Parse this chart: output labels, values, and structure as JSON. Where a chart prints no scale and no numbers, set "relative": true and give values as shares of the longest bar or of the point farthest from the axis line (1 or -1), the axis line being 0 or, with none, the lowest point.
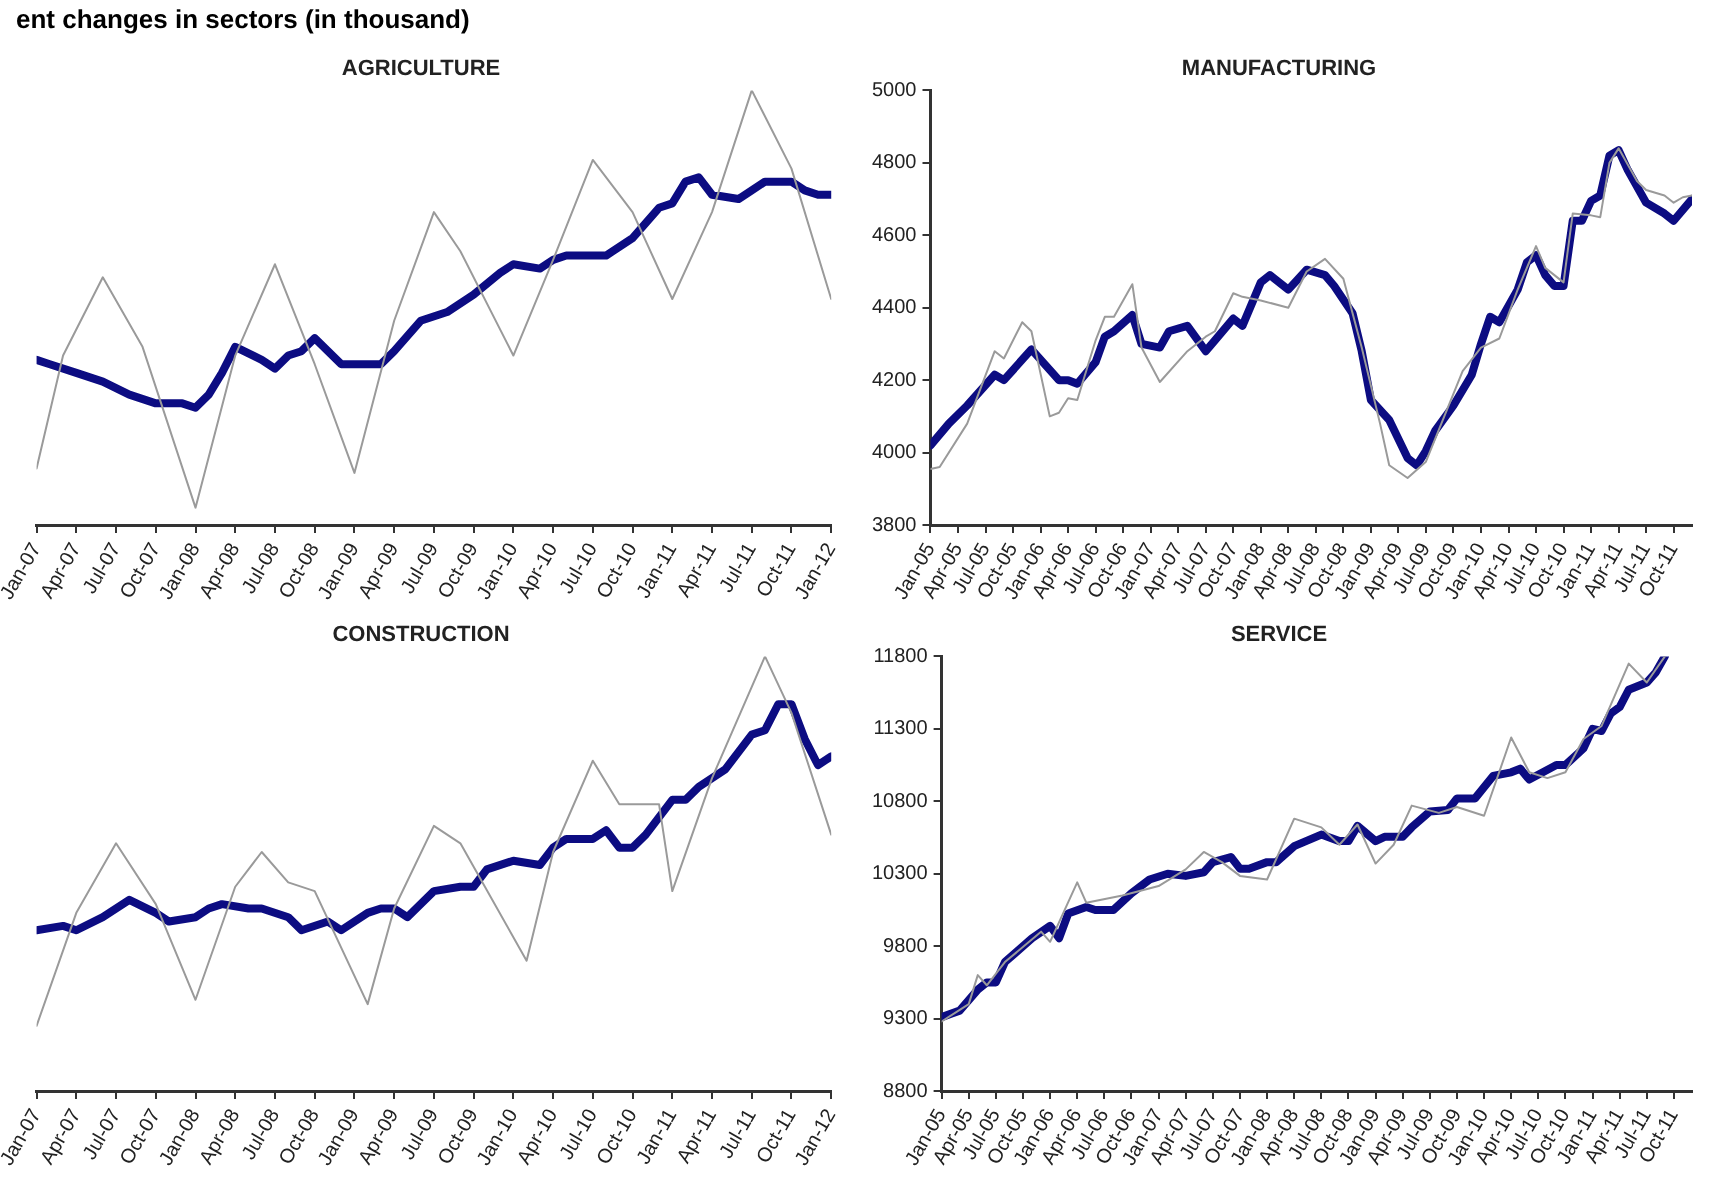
{
  "chart_data": [
    {
      "type": "line",
      "title": "AGRICULTURE",
      "annotations": [
        "ent changes in sectors (in thousand)"
      ],
      "relative": true,
      "marker": "none",
      "line_style": "solid",
      "xlim": [
        "2007-01",
        "2012-01"
      ],
      "xticks": [
        {
          "value": "2007-01",
          "label": "Jan-07"
        },
        {
          "value": "2007-04",
          "label": "Apr-07"
        },
        {
          "value": "2007-07",
          "label": "Jul-07"
        },
        {
          "value": "2007-10",
          "label": "Oct-07"
        },
        {
          "value": "2008-01",
          "label": "Jan-08"
        },
        {
          "value": "2008-04",
          "label": "Apr-08"
        },
        {
          "value": "2008-07",
          "label": "Jul-08"
        },
        {
          "value": "2008-10",
          "label": "Oct-08"
        },
        {
          "value": "2009-01",
          "label": "Jan-09"
        },
        {
          "value": "2009-04",
          "label": "Apr-09"
        },
        {
          "value": "2009-07",
          "label": "Jul-09"
        },
        {
          "value": "2009-10",
          "label": "Oct-09"
        },
        {
          "value": "2010-01",
          "label": "Jan-10"
        },
        {
          "value": "2010-04",
          "label": "Apr-10"
        },
        {
          "value": "2010-07",
          "label": "Jul-10"
        },
        {
          "value": "2010-10",
          "label": "Oct-10"
        },
        {
          "value": "2011-01",
          "label": "Jan-11"
        },
        {
          "value": "2011-04",
          "label": "Apr-11"
        },
        {
          "value": "2011-07",
          "label": "Jul-11"
        },
        {
          "value": "2011-10",
          "label": "Oct-11"
        },
        {
          "value": "2012-01",
          "label": "Jan-12"
        }
      ],
      "series": [
        {
          "color": "#9a9a9a",
          "x": [
            "2007-01",
            "2007-03",
            "2007-06",
            "2007-09",
            "2008-01",
            "2008-04",
            "2008-07",
            "2008-10",
            "2009-01",
            "2009-04",
            "2009-07",
            "2009-09",
            "2010-01",
            "2010-04",
            "2010-07",
            "2010-10",
            "2011-01",
            "2011-04",
            "2011-07",
            "2011-10",
            "2012-01"
          ],
          "values": [
            0.13,
            0.39,
            0.57,
            0.41,
            0.04,
            0.39,
            0.6,
            0.37,
            0.12,
            0.47,
            0.72,
            0.63,
            0.39,
            0.61,
            0.84,
            0.72,
            0.52,
            0.72,
            1,
            0.82,
            0.52
          ]
        },
        {
          "color": "#0c0c82",
          "x": [
            "2007-01",
            "2007-02",
            "2007-04",
            "2007-06",
            "2007-08",
            "2007-10",
            "2007-12",
            "2008-01",
            "2008-02",
            "2008-03",
            "2008-04",
            "2008-06",
            "2008-07",
            "2008-08",
            "2008-09",
            "2008-10",
            "2008-11",
            "2008-12",
            "2009-02",
            "2009-03",
            "2009-04",
            "2009-06",
            "2009-08",
            "2009-10",
            "2009-12",
            "2010-01",
            "2010-03",
            "2010-04",
            "2010-05",
            "2010-07",
            "2010-08",
            "2010-10",
            "2010-12",
            "2011-01",
            "2011-02",
            "2011-03",
            "2011-04",
            "2011-06",
            "2011-07",
            "2011-08",
            "2011-09",
            "2011-10",
            "2011-11",
            "2011-12",
            "2012-01"
          ],
          "values": [
            0.38,
            0.37,
            0.35,
            0.33,
            0.3,
            0.28,
            0.28,
            0.27,
            0.3,
            0.35,
            0.41,
            0.38,
            0.36,
            0.39,
            0.4,
            0.43,
            0.4,
            0.37,
            0.37,
            0.37,
            0.4,
            0.47,
            0.49,
            0.53,
            0.58,
            0.6,
            0.59,
            0.61,
            0.62,
            0.62,
            0.62,
            0.66,
            0.73,
            0.74,
            0.79,
            0.8,
            0.76,
            0.75,
            0.77,
            0.79,
            0.79,
            0.79,
            0.77,
            0.76,
            0.76
          ]
        }
      ]
    },
    {
      "type": "line",
      "title": "MANUFACTURING",
      "marker": "none",
      "line_style": "solid",
      "xlim": [
        "2005-01",
        "2011-12"
      ],
      "ylim": [
        3800,
        5000
      ],
      "yticks": [
        3800,
        4000,
        4200,
        4400,
        4600,
        4800,
        5000
      ],
      "xticks": [
        {
          "value": "2005-01",
          "label": "Jan-05"
        },
        {
          "value": "2005-04",
          "label": "Apr-05"
        },
        {
          "value": "2005-07",
          "label": "Jul-05"
        },
        {
          "value": "2005-10",
          "label": "Oct-05"
        },
        {
          "value": "2006-01",
          "label": "Jan-06"
        },
        {
          "value": "2006-04",
          "label": "Apr-06"
        },
        {
          "value": "2006-07",
          "label": "Jul-06"
        },
        {
          "value": "2006-10",
          "label": "Oct-06"
        },
        {
          "value": "2007-01",
          "label": "Jan-07"
        },
        {
          "value": "2007-04",
          "label": "Apr-07"
        },
        {
          "value": "2007-07",
          "label": "Jul-07"
        },
        {
          "value": "2007-10",
          "label": "Oct-07"
        },
        {
          "value": "2008-01",
          "label": "Jan-08"
        },
        {
          "value": "2008-04",
          "label": "Apr-08"
        },
        {
          "value": "2008-07",
          "label": "Jul-08"
        },
        {
          "value": "2008-10",
          "label": "Oct-08"
        },
        {
          "value": "2009-01",
          "label": "Jan-09"
        },
        {
          "value": "2009-04",
          "label": "Apr-09"
        },
        {
          "value": "2009-07",
          "label": "Jul-09"
        },
        {
          "value": "2009-10",
          "label": "Oct-09"
        },
        {
          "value": "2010-01",
          "label": "Jan-10"
        },
        {
          "value": "2010-04",
          "label": "Apr-10"
        },
        {
          "value": "2010-07",
          "label": "Jul-10"
        },
        {
          "value": "2010-10",
          "label": "Oct-10"
        },
        {
          "value": "2011-01",
          "label": "Jan-11"
        },
        {
          "value": "2011-04",
          "label": "Apr-11"
        },
        {
          "value": "2011-07",
          "label": "Jul-11"
        },
        {
          "value": "2011-10",
          "label": "Oct-11"
        }
      ],
      "series": [
        {
          "color": "#9a9a9a",
          "x": [
            "2005-01",
            "2005-02",
            "2005-05",
            "2005-08",
            "2005-09",
            "2005-11",
            "2005-12",
            "2006-02",
            "2006-03",
            "2006-04",
            "2006-05",
            "2006-07",
            "2006-08",
            "2006-09",
            "2006-11",
            "2006-12",
            "2007-02",
            "2007-05",
            "2007-07",
            "2007-08",
            "2007-10",
            "2007-11",
            "2008-01",
            "2008-04",
            "2008-06",
            "2008-08",
            "2008-10",
            "2008-12",
            "2009-02",
            "2009-03",
            "2009-05",
            "2009-07",
            "2009-09",
            "2009-11",
            "2010-01",
            "2010-03",
            "2010-05",
            "2010-07",
            "2010-08",
            "2010-10",
            "2010-11",
            "2011-01",
            "2011-02",
            "2011-03",
            "2011-04",
            "2011-06",
            "2011-07",
            "2011-09",
            "2011-10",
            "2011-11",
            "2011-12"
          ],
          "values": [
            3955,
            3960,
            4080,
            4280,
            4260,
            4360,
            4335,
            4100,
            4110,
            4150,
            4145,
            4310,
            4375,
            4375,
            4465,
            4290,
            4195,
            4280,
            4320,
            4335,
            4440,
            4430,
            4420,
            4400,
            4500,
            4535,
            4480,
            4290,
            4080,
            3965,
            3930,
            3975,
            4100,
            4225,
            4290,
            4315,
            4450,
            4570,
            4510,
            4470,
            4660,
            4655,
            4650,
            4800,
            4840,
            4750,
            4725,
            4710,
            4690,
            4705,
            4710
          ]
        },
        {
          "color": "#0c0c82",
          "x": [
            "2005-01",
            "2005-03",
            "2005-05",
            "2005-08",
            "2005-09",
            "2005-12",
            "2006-03",
            "2006-04",
            "2006-05",
            "2006-07",
            "2006-08",
            "2006-09",
            "2006-11",
            "2006-12",
            "2007-02",
            "2007-03",
            "2007-05",
            "2007-07",
            "2007-08",
            "2007-10",
            "2007-11",
            "2008-01",
            "2008-02",
            "2008-04",
            "2008-06",
            "2008-08",
            "2008-09",
            "2008-11",
            "2008-12",
            "2009-01",
            "2009-03",
            "2009-05",
            "2009-06",
            "2009-07",
            "2009-08",
            "2009-10",
            "2009-12",
            "2010-01",
            "2010-02",
            "2010-03",
            "2010-05",
            "2010-06",
            "2010-07",
            "2010-08",
            "2010-09",
            "2010-10",
            "2010-11",
            "2010-12",
            "2011-01",
            "2011-02",
            "2011-03",
            "2011-04",
            "2011-05",
            "2011-07",
            "2011-09",
            "2011-10",
            "2011-12"
          ],
          "values": [
            4020,
            4080,
            4130,
            4215,
            4200,
            4285,
            4200,
            4200,
            4190,
            4250,
            4320,
            4335,
            4380,
            4300,
            4290,
            4335,
            4350,
            4280,
            4310,
            4370,
            4350,
            4470,
            4490,
            4450,
            4505,
            4490,
            4460,
            4385,
            4280,
            4145,
            4090,
            3985,
            3965,
            4005,
            4060,
            4130,
            4215,
            4300,
            4375,
            4360,
            4450,
            4525,
            4545,
            4490,
            4460,
            4460,
            4640,
            4640,
            4695,
            4710,
            4820,
            4835,
            4780,
            4690,
            4660,
            4640,
            4700
          ]
        }
      ]
    },
    {
      "type": "line",
      "title": "CONSTRUCTION",
      "relative": true,
      "marker": "none",
      "line_style": "solid",
      "xlim": [
        "2007-01",
        "2012-01"
      ],
      "xticks": [
        {
          "value": "2007-01",
          "label": "Jan-07"
        },
        {
          "value": "2007-04",
          "label": "Apr-07"
        },
        {
          "value": "2007-07",
          "label": "Jul-07"
        },
        {
          "value": "2007-10",
          "label": "Oct-07"
        },
        {
          "value": "2008-01",
          "label": "Jan-08"
        },
        {
          "value": "2008-04",
          "label": "Apr-08"
        },
        {
          "value": "2008-07",
          "label": "Jul-08"
        },
        {
          "value": "2008-10",
          "label": "Oct-08"
        },
        {
          "value": "2009-01",
          "label": "Jan-09"
        },
        {
          "value": "2009-04",
          "label": "Apr-09"
        },
        {
          "value": "2009-07",
          "label": "Jul-09"
        },
        {
          "value": "2009-10",
          "label": "Oct-09"
        },
        {
          "value": "2010-01",
          "label": "Jan-10"
        },
        {
          "value": "2010-04",
          "label": "Apr-10"
        },
        {
          "value": "2010-07",
          "label": "Jul-10"
        },
        {
          "value": "2010-10",
          "label": "Oct-10"
        },
        {
          "value": "2011-01",
          "label": "Jan-11"
        },
        {
          "value": "2011-04",
          "label": "Apr-11"
        },
        {
          "value": "2011-07",
          "label": "Jul-11"
        },
        {
          "value": "2011-10",
          "label": "Oct-11"
        },
        {
          "value": "2012-01",
          "label": "Jan-12"
        }
      ],
      "series": [
        {
          "color": "#9a9a9a",
          "x": [
            "2007-01",
            "2007-04",
            "2007-07",
            "2007-10",
            "2008-01",
            "2008-04",
            "2008-06",
            "2008-08",
            "2008-10",
            "2009-02",
            "2009-04",
            "2009-07",
            "2009-09",
            "2010-02",
            "2010-04",
            "2010-07",
            "2010-09",
            "2010-12",
            "2011-01",
            "2011-04",
            "2011-08",
            "2011-10",
            "2012-01"
          ],
          "values": [
            0.15,
            0.41,
            0.57,
            0.43,
            0.21,
            0.47,
            0.55,
            0.48,
            0.46,
            0.2,
            0.42,
            0.61,
            0.57,
            0.3,
            0.55,
            0.76,
            0.66,
            0.66,
            0.46,
            0.72,
            1,
            0.87,
            0.59
          ]
        },
        {
          "color": "#0c0c82",
          "x": [
            "2007-01",
            "2007-03",
            "2007-04",
            "2007-06",
            "2007-08",
            "2007-10",
            "2007-11",
            "2008-01",
            "2008-02",
            "2008-03",
            "2008-05",
            "2008-06",
            "2008-08",
            "2008-09",
            "2008-11",
            "2008-12",
            "2009-02",
            "2009-03",
            "2009-04",
            "2009-05",
            "2009-07",
            "2009-09",
            "2009-10",
            "2009-11",
            "2010-01",
            "2010-03",
            "2010-04",
            "2010-05",
            "2010-07",
            "2010-08",
            "2010-09",
            "2010-10",
            "2010-11",
            "2011-01",
            "2011-02",
            "2011-03",
            "2011-05",
            "2011-07",
            "2011-08",
            "2011-09",
            "2011-10",
            "2011-11",
            "2011-12",
            "2012-01"
          ],
          "values": [
            0.37,
            0.38,
            0.37,
            0.4,
            0.44,
            0.41,
            0.39,
            0.4,
            0.42,
            0.43,
            0.42,
            0.42,
            0.4,
            0.37,
            0.39,
            0.37,
            0.41,
            0.42,
            0.42,
            0.4,
            0.46,
            0.47,
            0.47,
            0.51,
            0.53,
            0.52,
            0.56,
            0.58,
            0.58,
            0.6,
            0.56,
            0.56,
            0.59,
            0.67,
            0.67,
            0.7,
            0.74,
            0.82,
            0.83,
            0.89,
            0.89,
            0.81,
            0.75,
            0.77
          ]
        }
      ]
    },
    {
      "type": "line",
      "title": "SERVICE",
      "marker": "none",
      "line_style": "solid",
      "xlim": [
        "2005-01",
        "2011-12"
      ],
      "ylim": [
        8800,
        11800
      ],
      "yticks": [
        8800,
        9300,
        9800,
        10300,
        10800,
        11300,
        11800
      ],
      "xticks": [
        {
          "value": "2005-01",
          "label": "Jan-05"
        },
        {
          "value": "2005-04",
          "label": "Apr-05"
        },
        {
          "value": "2005-07",
          "label": "Jul-05"
        },
        {
          "value": "2005-10",
          "label": "Oct-05"
        },
        {
          "value": "2006-01",
          "label": "Jan-06"
        },
        {
          "value": "2006-04",
          "label": "Apr-06"
        },
        {
          "value": "2006-07",
          "label": "Jul-06"
        },
        {
          "value": "2006-10",
          "label": "Oct-06"
        },
        {
          "value": "2007-01",
          "label": "Jan-07"
        },
        {
          "value": "2007-04",
          "label": "Apr-07"
        },
        {
          "value": "2007-07",
          "label": "Jul-07"
        },
        {
          "value": "2007-10",
          "label": "Oct-07"
        },
        {
          "value": "2008-01",
          "label": "Jan-08"
        },
        {
          "value": "2008-04",
          "label": "Apr-08"
        },
        {
          "value": "2008-07",
          "label": "Jul-08"
        },
        {
          "value": "2008-10",
          "label": "Oct-08"
        },
        {
          "value": "2009-01",
          "label": "Jan-09"
        },
        {
          "value": "2009-04",
          "label": "Apr-09"
        },
        {
          "value": "2009-07",
          "label": "Jul-09"
        },
        {
          "value": "2009-10",
          "label": "Oct-09"
        },
        {
          "value": "2010-01",
          "label": "Jan-10"
        },
        {
          "value": "2010-04",
          "label": "Apr-10"
        },
        {
          "value": "2010-07",
          "label": "Jul-10"
        },
        {
          "value": "2010-10",
          "label": "Oct-10"
        },
        {
          "value": "2011-01",
          "label": "Jan-11"
        },
        {
          "value": "2011-04",
          "label": "Apr-11"
        },
        {
          "value": "2011-07",
          "label": "Jul-11"
        },
        {
          "value": "2011-10",
          "label": "Oct-11"
        }
      ],
      "series": [
        {
          "color": "#9a9a9a",
          "x": [
            "2005-01",
            "2005-04",
            "2005-05",
            "2005-06",
            "2005-08",
            "2005-12",
            "2006-01",
            "2006-04",
            "2006-05",
            "2006-09",
            "2007-01",
            "2007-04",
            "2007-06",
            "2007-08",
            "2007-10",
            "2008-01",
            "2008-04",
            "2008-07",
            "2008-09",
            "2008-11",
            "2009-01",
            "2009-03",
            "2009-05",
            "2009-08",
            "2009-10",
            "2010-01",
            "2010-04",
            "2010-06",
            "2010-08",
            "2010-10",
            "2010-12",
            "2011-02",
            "2011-05",
            "2011-07",
            "2011-09"
          ],
          "values": [
            9280,
            9400,
            9600,
            9530,
            9690,
            9900,
            9830,
            10240,
            10100,
            10150,
            10215,
            10330,
            10450,
            10380,
            10285,
            10260,
            10680,
            10620,
            10500,
            10640,
            10370,
            10500,
            10770,
            10720,
            10760,
            10700,
            11240,
            11000,
            10960,
            11000,
            11230,
            11320,
            11750,
            11620,
            11800
          ]
        },
        {
          "color": "#0c0c82",
          "x": [
            "2005-01",
            "2005-03",
            "2005-05",
            "2005-06",
            "2005-07",
            "2005-08",
            "2005-11",
            "2006-01",
            "2006-02",
            "2006-03",
            "2006-05",
            "2006-06",
            "2006-08",
            "2006-10",
            "2006-12",
            "2007-02",
            "2007-04",
            "2007-06",
            "2007-07",
            "2007-09",
            "2007-10",
            "2007-11",
            "2008-01",
            "2008-02",
            "2008-04",
            "2008-07",
            "2008-09",
            "2008-10",
            "2008-11",
            "2009-01",
            "2009-02",
            "2009-04",
            "2009-05",
            "2009-07",
            "2009-09",
            "2009-10",
            "2009-12",
            "2010-02",
            "2010-04",
            "2010-05",
            "2010-06",
            "2010-09",
            "2010-10",
            "2010-12",
            "2011-01",
            "2011-02",
            "2011-03",
            "2011-04",
            "2011-05",
            "2011-07",
            "2011-08",
            "2011-09"
          ],
          "values": [
            9310,
            9355,
            9500,
            9550,
            9550,
            9690,
            9855,
            9940,
            9855,
            10025,
            10070,
            10050,
            10050,
            10165,
            10260,
            10300,
            10285,
            10310,
            10380,
            10415,
            10335,
            10335,
            10380,
            10380,
            10490,
            10570,
            10525,
            10525,
            10630,
            10525,
            10555,
            10555,
            10620,
            10730,
            10740,
            10820,
            10820,
            10975,
            11000,
            11025,
            10950,
            11050,
            11050,
            11165,
            11300,
            11285,
            11405,
            11450,
            11570,
            11620,
            11690,
            11800
          ]
        }
      ]
    }
  ]
}
